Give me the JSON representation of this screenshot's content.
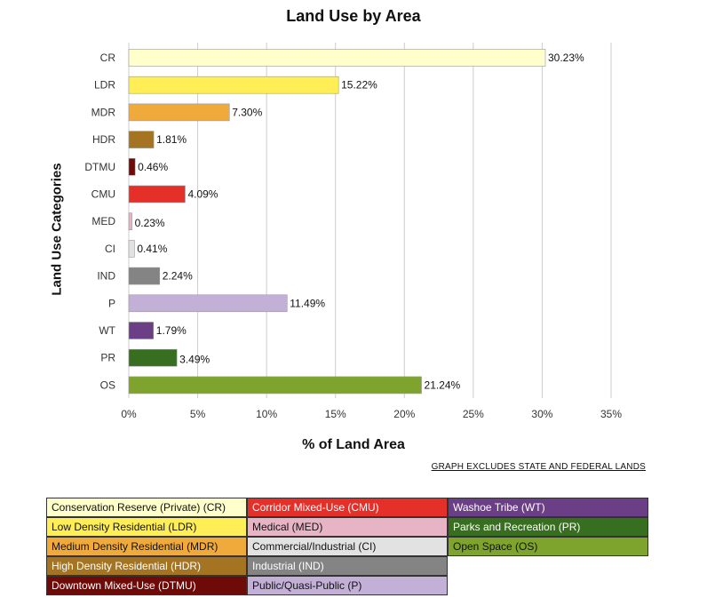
{
  "chart_data": {
    "type": "bar",
    "orientation": "horizontal",
    "title": "Land Use by Area",
    "xlabel": "% of Land Area",
    "ylabel": "Land Use Categories",
    "xlim": [
      0,
      35
    ],
    "xticks": [
      "0%",
      "5%",
      "10%",
      "15%",
      "20%",
      "25%",
      "30%",
      "35%"
    ],
    "grid": "vertical",
    "categories": [
      "CR",
      "LDR",
      "MDR",
      "HDR",
      "DTMU",
      "CMU",
      "MED",
      "CI",
      "IND",
      "P",
      "WT",
      "PR",
      "OS"
    ],
    "values": [
      30.23,
      15.22,
      7.3,
      1.81,
      0.46,
      4.09,
      0.23,
      0.41,
      2.24,
      11.49,
      1.79,
      3.49,
      21.24
    ],
    "value_labels": [
      "30.23%",
      "15.22%",
      "7.30%",
      "1.81%",
      "0.46%",
      "4.09%",
      "0.23%",
      "0.41%",
      "2.24%",
      "11.49%",
      "1.79%",
      "3.49%",
      "21.24%"
    ],
    "colors": [
      "#ffffcc",
      "#ffee55",
      "#f0aa3c",
      "#a57423",
      "#6e0a07",
      "#e5302a",
      "#e6b4c4",
      "#e2e2e2",
      "#848484",
      "#c3b0d6",
      "#6b3f86",
      "#386e1f",
      "#7ea42d"
    ],
    "footnote": "GRAPH EXCLUDES STATE AND FEDERAL LANDS"
  },
  "legend": [
    {
      "label": "Conservation Reserve (Private) (CR)",
      "color": "#ffffcc",
      "text_color": "#111111"
    },
    {
      "label": "Low Density Residential (LDR)",
      "color": "#ffee55",
      "text_color": "#111111"
    },
    {
      "label": "Medium Density Residential (MDR)",
      "color": "#f0aa3c",
      "text_color": "#111111"
    },
    {
      "label": "High Density Residential (HDR)",
      "color": "#a57423",
      "text_color": "#ffffff"
    },
    {
      "label": "Downtown Mixed-Use (DTMU)",
      "color": "#6e0a07",
      "text_color": "#ffffff"
    },
    {
      "label": "Corridor Mixed-Use (CMU)",
      "color": "#e5302a",
      "text_color": "#ffffff"
    },
    {
      "label": "Medical (MED)",
      "color": "#e6b4c4",
      "text_color": "#111111"
    },
    {
      "label": "Commercial/Industrial (CI)",
      "color": "#e2e2e2",
      "text_color": "#111111"
    },
    {
      "label": "Industrial (IND)",
      "color": "#848484",
      "text_color": "#ffffff"
    },
    {
      "label": "Public/Quasi-Public (P)",
      "color": "#c3b0d6",
      "text_color": "#111111"
    },
    {
      "label": "Washoe Tribe (WT)",
      "color": "#6b3f86",
      "text_color": "#ffffff"
    },
    {
      "label": "Parks and Recreation (PR)",
      "color": "#386e1f",
      "text_color": "#ffffff"
    },
    {
      "label": "Open Space (OS)",
      "color": "#7ea42d",
      "text_color": "#111111"
    }
  ]
}
